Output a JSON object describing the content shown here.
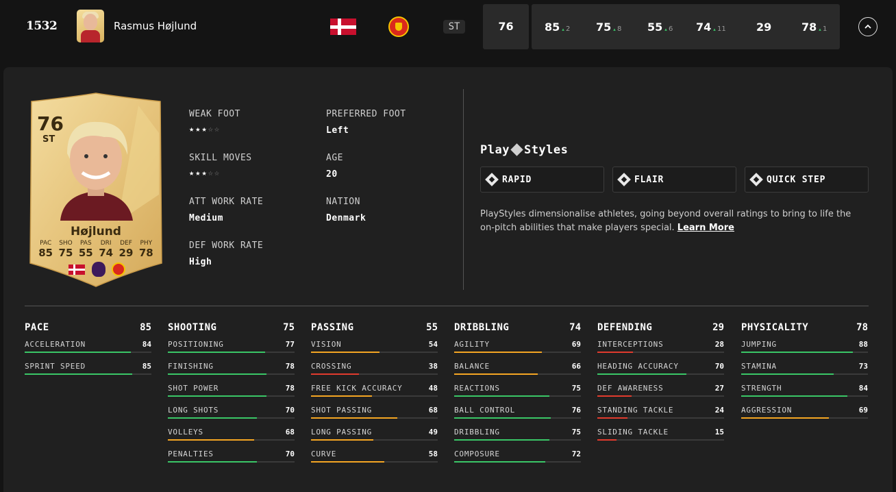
{
  "header": {
    "rank": "1532",
    "player_name": "Rasmus Højlund",
    "position": "ST",
    "overall": "76",
    "stats": [
      {
        "value": "85",
        "delta": "2"
      },
      {
        "value": "75",
        "delta": "8"
      },
      {
        "value": "55",
        "delta": "6"
      },
      {
        "value": "74",
        "delta": "11"
      },
      {
        "value": "29",
        "delta": ""
      },
      {
        "value": "78",
        "delta": "1"
      }
    ],
    "icons": {
      "flag": "denmark-flag",
      "club": "manchester-united-crest",
      "collapse": "chevron-up-icon"
    }
  },
  "card": {
    "rating": "76",
    "position": "ST",
    "name": "Højlund",
    "stats": [
      {
        "label": "PAC",
        "value": "85"
      },
      {
        "label": "SHO",
        "value": "75"
      },
      {
        "label": "PAS",
        "value": "55"
      },
      {
        "label": "DRI",
        "value": "74"
      },
      {
        "label": "DEF",
        "value": "29"
      },
      {
        "label": "PHY",
        "value": "78"
      }
    ]
  },
  "info": {
    "weak_foot_label": "WEAK FOOT",
    "weak_foot_stars": 3,
    "skill_moves_label": "SKILL MOVES",
    "skill_moves_stars": 3,
    "att_work_rate_label": "ATT WORK RATE",
    "att_work_rate": "Medium",
    "def_work_rate_label": "DEF WORK RATE",
    "def_work_rate": "High",
    "preferred_foot_label": "PREFERRED FOOT",
    "preferred_foot": "Left",
    "age_label": "AGE",
    "age": "20",
    "nation_label": "NATION",
    "nation": "Denmark"
  },
  "playstyles": {
    "title_left": "Play",
    "title_right": "Styles",
    "items": [
      "RAPID",
      "FLAIR",
      "QUICK STEP"
    ],
    "description": "PlayStyles dimensionalise athletes, going beyond overall ratings to bring to life the on-pitch abilities that make players special.",
    "learn_more": "Learn More"
  },
  "colors": {
    "green": "#3ac767",
    "orange": "#f5a623",
    "red": "#e23b2e",
    "background": "#141414",
    "panel": "#202020"
  },
  "attributes": [
    {
      "name": "PACE",
      "value": "85",
      "items": [
        {
          "name": "ACCELERATION",
          "value": "84"
        },
        {
          "name": "SPRINT SPEED",
          "value": "85"
        }
      ]
    },
    {
      "name": "SHOOTING",
      "value": "75",
      "items": [
        {
          "name": "POSITIONING",
          "value": "77"
        },
        {
          "name": "FINISHING",
          "value": "78"
        },
        {
          "name": "SHOT POWER",
          "value": "78"
        },
        {
          "name": "LONG SHOTS",
          "value": "70"
        },
        {
          "name": "VOLLEYS",
          "value": "68"
        },
        {
          "name": "PENALTIES",
          "value": "70"
        }
      ]
    },
    {
      "name": "PASSING",
      "value": "55",
      "items": [
        {
          "name": "VISION",
          "value": "54"
        },
        {
          "name": "CROSSING",
          "value": "38"
        },
        {
          "name": "FREE KICK ACCURACY",
          "value": "48"
        },
        {
          "name": "SHOT PASSING",
          "value": "68"
        },
        {
          "name": "LONG PASSING",
          "value": "49"
        },
        {
          "name": "CURVE",
          "value": "58"
        }
      ]
    },
    {
      "name": "DRIBBLING",
      "value": "74",
      "items": [
        {
          "name": "AGILITY",
          "value": "69"
        },
        {
          "name": "BALANCE",
          "value": "66"
        },
        {
          "name": "REACTIONS",
          "value": "75"
        },
        {
          "name": "BALL CONTROL",
          "value": "76"
        },
        {
          "name": "DRIBBLING",
          "value": "75"
        },
        {
          "name": "COMPOSURE",
          "value": "72"
        }
      ]
    },
    {
      "name": "DEFENDING",
      "value": "29",
      "items": [
        {
          "name": "INTERCEPTIONS",
          "value": "28"
        },
        {
          "name": "HEADING ACCURACY",
          "value": "70"
        },
        {
          "name": "DEF AWARENESS",
          "value": "27"
        },
        {
          "name": "STANDING TACKLE",
          "value": "24"
        },
        {
          "name": "SLIDING TACKLE",
          "value": "15"
        }
      ]
    },
    {
      "name": "PHYSICALITY",
      "value": "78",
      "items": [
        {
          "name": "JUMPING",
          "value": "88"
        },
        {
          "name": "STAMINA",
          "value": "73"
        },
        {
          "name": "STRENGTH",
          "value": "84"
        },
        {
          "name": "AGGRESSION",
          "value": "69"
        }
      ]
    }
  ]
}
